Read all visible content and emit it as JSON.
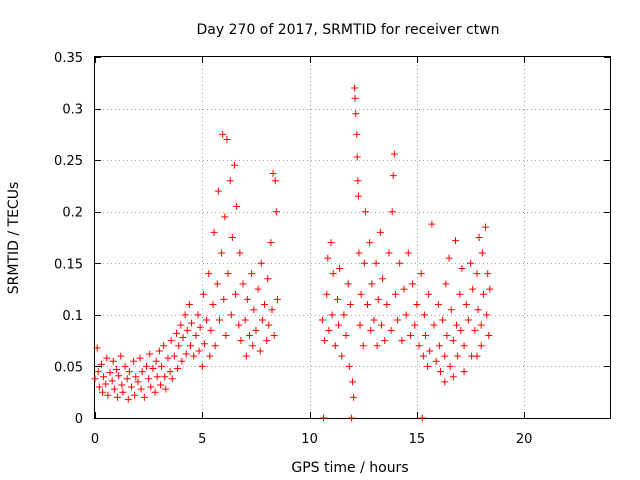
{
  "chart_data": {
    "type": "scatter",
    "title": "Day 270 of 2017, SRMTID for receiver ctwn",
    "xlabel": "GPS time / hours",
    "ylabel": "SRMTID / TECUs",
    "xlim": [
      0,
      24
    ],
    "ylim": [
      0,
      0.35
    ],
    "x_ticks": [
      0,
      5,
      10,
      15,
      20
    ],
    "x_tick_labels": [
      "0",
      "5",
      "10",
      "15",
      "20"
    ],
    "y_ticks": [
      0,
      0.05,
      0.1,
      0.15,
      0.2,
      0.25,
      0.3,
      0.35
    ],
    "y_tick_labels": [
      "0",
      "0.05",
      "0.1",
      "0.15",
      "0.2",
      "0.25",
      "0.3",
      "0.35"
    ],
    "grid": true,
    "marker": "+",
    "series_color": "#ff0000",
    "series": [
      {
        "name": "SRMTID",
        "points": [
          [
            0.0,
            0.038
          ],
          [
            0.1,
            0.068
          ],
          [
            0.15,
            0.045
          ],
          [
            0.2,
            0.03
          ],
          [
            0.3,
            0.052
          ],
          [
            0.35,
            0.025
          ],
          [
            0.4,
            0.04
          ],
          [
            0.5,
            0.033
          ],
          [
            0.55,
            0.058
          ],
          [
            0.6,
            0.022
          ],
          [
            0.7,
            0.044
          ],
          [
            0.8,
            0.036
          ],
          [
            0.85,
            0.055
          ],
          [
            0.9,
            0.028
          ],
          [
            1.0,
            0.047
          ],
          [
            1.05,
            0.02
          ],
          [
            1.1,
            0.041
          ],
          [
            1.2,
            0.06
          ],
          [
            1.25,
            0.032
          ],
          [
            1.3,
            0.025
          ],
          [
            1.4,
            0.05
          ],
          [
            1.5,
            0.038
          ],
          [
            1.55,
            0.018
          ],
          [
            1.6,
            0.045
          ],
          [
            1.7,
            0.03
          ],
          [
            1.8,
            0.055
          ],
          [
            1.85,
            0.022
          ],
          [
            1.9,
            0.04
          ],
          [
            2.0,
            0.035
          ],
          [
            2.1,
            0.058
          ],
          [
            2.15,
            0.028
          ],
          [
            2.2,
            0.045
          ],
          [
            2.3,
            0.02
          ],
          [
            2.4,
            0.05
          ],
          [
            2.5,
            0.038
          ],
          [
            2.55,
            0.062
          ],
          [
            2.6,
            0.03
          ],
          [
            2.7,
            0.048
          ],
          [
            2.8,
            0.025
          ],
          [
            2.85,
            0.055
          ],
          [
            2.9,
            0.04
          ],
          [
            3.0,
            0.065
          ],
          [
            3.05,
            0.032
          ],
          [
            3.1,
            0.05
          ],
          [
            3.2,
            0.07
          ],
          [
            3.25,
            0.04
          ],
          [
            3.3,
            0.028
          ],
          [
            3.4,
            0.058
          ],
          [
            3.5,
            0.045
          ],
          [
            3.55,
            0.075
          ],
          [
            3.6,
            0.038
          ],
          [
            3.7,
            0.06
          ],
          [
            3.8,
            0.082
          ],
          [
            3.85,
            0.048
          ],
          [
            3.9,
            0.07
          ],
          [
            4.0,
            0.09
          ],
          [
            4.05,
            0.055
          ],
          [
            4.1,
            0.078
          ],
          [
            4.2,
            0.1
          ],
          [
            4.25,
            0.062
          ],
          [
            4.3,
            0.085
          ],
          [
            4.4,
            0.11
          ],
          [
            4.45,
            0.07
          ],
          [
            4.5,
            0.092
          ],
          [
            4.6,
            0.06
          ],
          [
            4.7,
            0.08
          ],
          [
            4.8,
            0.1
          ],
          [
            4.85,
            0.065
          ],
          [
            4.9,
            0.088
          ],
          [
            5.0,
            0.05
          ],
          [
            5.05,
            0.12
          ],
          [
            5.1,
            0.072
          ],
          [
            5.2,
            0.095
          ],
          [
            5.3,
            0.14
          ],
          [
            5.35,
            0.06
          ],
          [
            5.4,
            0.085
          ],
          [
            5.5,
            0.11
          ],
          [
            5.55,
            0.18
          ],
          [
            5.6,
            0.07
          ],
          [
            5.7,
            0.13
          ],
          [
            5.75,
            0.22
          ],
          [
            5.8,
            0.095
          ],
          [
            5.9,
            0.16
          ],
          [
            5.95,
            0.275
          ],
          [
            6.0,
            0.115
          ],
          [
            6.05,
            0.195
          ],
          [
            6.1,
            0.08
          ],
          [
            6.15,
            0.27
          ],
          [
            6.2,
            0.14
          ],
          [
            6.3,
            0.23
          ],
          [
            6.35,
            0.1
          ],
          [
            6.4,
            0.175
          ],
          [
            6.5,
            0.245
          ],
          [
            6.55,
            0.12
          ],
          [
            6.6,
            0.205
          ],
          [
            6.7,
            0.09
          ],
          [
            6.75,
            0.16
          ],
          [
            6.8,
            0.075
          ],
          [
            6.9,
            0.13
          ],
          [
            7.0,
            0.095
          ],
          [
            7.05,
            0.06
          ],
          [
            7.1,
            0.115
          ],
          [
            7.2,
            0.08
          ],
          [
            7.3,
            0.14
          ],
          [
            7.35,
            0.07
          ],
          [
            7.4,
            0.105
          ],
          [
            7.5,
            0.085
          ],
          [
            7.6,
            0.125
          ],
          [
            7.7,
            0.065
          ],
          [
            7.75,
            0.15
          ],
          [
            7.8,
            0.095
          ],
          [
            7.9,
            0.11
          ],
          [
            8.0,
            0.075
          ],
          [
            8.05,
            0.135
          ],
          [
            8.1,
            0.09
          ],
          [
            8.2,
            0.17
          ],
          [
            8.25,
            0.105
          ],
          [
            8.3,
            0.237
          ],
          [
            8.35,
            0.08
          ],
          [
            8.4,
            0.23
          ],
          [
            8.45,
            0.2
          ],
          [
            8.5,
            0.115
          ],
          [
            10.6,
            0.095
          ],
          [
            10.7,
            0.075
          ],
          [
            10.8,
            0.12
          ],
          [
            10.85,
            0.155
          ],
          [
            10.9,
            0.085
          ],
          [
            11.0,
            0.17
          ],
          [
            11.05,
            0.1
          ],
          [
            11.1,
            0.14
          ],
          [
            11.2,
            0.07
          ],
          [
            11.3,
            0.115
          ],
          [
            11.35,
            0.09
          ],
          [
            11.4,
            0.145
          ],
          [
            11.5,
            0.06
          ],
          [
            11.6,
            0.1
          ],
          [
            11.7,
            0.08
          ],
          [
            11.8,
            0.13
          ],
          [
            11.85,
            0.05
          ],
          [
            11.9,
            0.11
          ],
          [
            12.0,
            0.035
          ],
          [
            12.05,
            0.02
          ],
          [
            12.1,
            0.32
          ],
          [
            12.12,
            0.31
          ],
          [
            12.15,
            0.295
          ],
          [
            12.2,
            0.275
          ],
          [
            12.22,
            0.253
          ],
          [
            12.25,
            0.23
          ],
          [
            12.28,
            0.215
          ],
          [
            12.3,
            0.16
          ],
          [
            12.35,
            0.09
          ],
          [
            12.4,
            0.12
          ],
          [
            12.5,
            0.07
          ],
          [
            12.55,
            0.15
          ],
          [
            12.6,
            0.2
          ],
          [
            12.7,
            0.11
          ],
          [
            12.8,
            0.17
          ],
          [
            12.85,
            0.085
          ],
          [
            12.9,
            0.13
          ],
          [
            13.0,
            0.095
          ],
          [
            13.1,
            0.15
          ],
          [
            13.15,
            0.07
          ],
          [
            13.2,
            0.115
          ],
          [
            13.3,
            0.18
          ],
          [
            13.35,
            0.09
          ],
          [
            13.4,
            0.135
          ],
          [
            13.5,
            0.075
          ],
          [
            13.6,
            0.11
          ],
          [
            13.7,
            0.16
          ],
          [
            13.8,
            0.085
          ],
          [
            13.85,
            0.2
          ],
          [
            13.9,
            0.235
          ],
          [
            13.95,
            0.256
          ],
          [
            14.0,
            0.12
          ],
          [
            14.1,
            0.095
          ],
          [
            14.2,
            0.15
          ],
          [
            14.3,
            0.075
          ],
          [
            14.4,
            0.125
          ],
          [
            14.5,
            0.1
          ],
          [
            14.6,
            0.16
          ],
          [
            14.7,
            0.08
          ],
          [
            14.8,
            0.13
          ],
          [
            14.9,
            0.09
          ],
          [
            15.0,
            0.11
          ],
          [
            15.1,
            0.07
          ],
          [
            15.2,
            0.14
          ],
          [
            15.3,
            0.06
          ],
          [
            15.35,
            0.1
          ],
          [
            15.4,
            0.08
          ],
          [
            15.5,
            0.05
          ],
          [
            15.55,
            0.12
          ],
          [
            15.6,
            0.065
          ],
          [
            15.7,
            0.188
          ],
          [
            15.8,
            0.09
          ],
          [
            15.9,
            0.055
          ],
          [
            16.0,
            0.11
          ],
          [
            16.05,
            0.07
          ],
          [
            16.1,
            0.045
          ],
          [
            16.2,
            0.095
          ],
          [
            16.3,
            0.06
          ],
          [
            16.35,
            0.13
          ],
          [
            16.4,
            0.08
          ],
          [
            16.5,
            0.155
          ],
          [
            16.55,
            0.05
          ],
          [
            16.6,
            0.105
          ],
          [
            16.7,
            0.075
          ],
          [
            16.8,
            0.172
          ],
          [
            16.85,
            0.09
          ],
          [
            16.9,
            0.06
          ],
          [
            17.0,
            0.12
          ],
          [
            17.05,
            0.085
          ],
          [
            17.1,
            0.145
          ],
          [
            17.2,
            0.07
          ],
          [
            17.3,
            0.11
          ],
          [
            17.4,
            0.095
          ],
          [
            17.5,
            0.15
          ],
          [
            17.55,
            0.06
          ],
          [
            17.6,
            0.125
          ],
          [
            17.7,
            0.085
          ],
          [
            17.8,
            0.14
          ],
          [
            17.85,
            0.105
          ],
          [
            17.9,
            0.175
          ],
          [
            18.0,
            0.09
          ],
          [
            18.05,
            0.16
          ],
          [
            18.1,
            0.12
          ],
          [
            18.2,
            0.185
          ],
          [
            18.25,
            0.1
          ],
          [
            18.3,
            0.14
          ],
          [
            18.35,
            0.08
          ],
          [
            18.4,
            0.125
          ],
          [
            18.0,
            0.07
          ],
          [
            17.8,
            0.06
          ],
          [
            17.2,
            0.045
          ],
          [
            16.7,
            0.04
          ],
          [
            16.3,
            0.035
          ],
          [
            10.65,
            0.0
          ],
          [
            11.95,
            0.0
          ],
          [
            15.25,
            0.0
          ]
        ]
      }
    ]
  }
}
